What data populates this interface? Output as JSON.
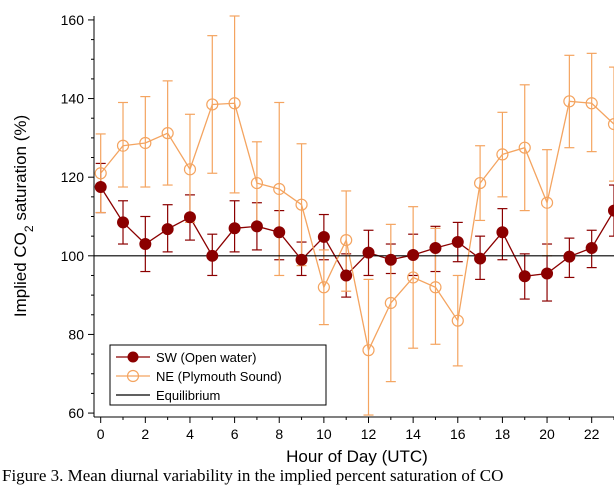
{
  "chart_data": {
    "type": "line",
    "xlabel": "Hour of Day (UTC)",
    "ylabel_parts": [
      "Implied CO",
      "2",
      " saturation (%)"
    ],
    "xlim": [
      -0.3,
      23
    ],
    "ylim": [
      59,
      161
    ],
    "xticks": [
      0,
      2,
      4,
      6,
      8,
      10,
      12,
      14,
      16,
      18,
      20,
      22
    ],
    "yticks": [
      60,
      80,
      100,
      120,
      140,
      160
    ],
    "grid": false,
    "legend_position": "bottom-left",
    "x": [
      0,
      1,
      2,
      3,
      4,
      5,
      6,
      7,
      8,
      9,
      10,
      11,
      12,
      13,
      14,
      15,
      16,
      17,
      18,
      19,
      20,
      21,
      22,
      23
    ],
    "series": [
      {
        "name": "SW (Open water)",
        "color": "#8b0000",
        "marker": "filled-circle",
        "values": [
          117.5,
          108.5,
          103.0,
          106.8,
          109.8,
          100.0,
          107.0,
          107.5,
          106.0,
          99.0,
          104.8,
          95.0,
          100.8,
          99.0,
          100.2,
          102.0,
          103.5,
          99.3,
          106.0,
          94.8,
          95.5,
          99.8,
          102.0,
          111.5
        ],
        "err_low": [
          111.0,
          103.0,
          96.0,
          101.0,
          104.0,
          95.0,
          101.0,
          101.5,
          99.0,
          95.0,
          99.0,
          89.5,
          95.0,
          95.5,
          95.0,
          96.0,
          98.5,
          94.0,
          99.0,
          89.0,
          88.5,
          94.5,
          97.0,
          105.0
        ],
        "err_high": [
          123.5,
          114.0,
          110.0,
          113.0,
          115.5,
          105.5,
          114.0,
          113.5,
          111.5,
          103.5,
          110.5,
          100.5,
          106.5,
          103.0,
          105.5,
          107.5,
          108.5,
          105.0,
          112.0,
          100.5,
          103.0,
          104.5,
          106.5,
          118.0
        ]
      },
      {
        "name": "NE (Plymouth Sound)",
        "color": "#f4a460",
        "marker": "open-circle",
        "values": [
          121.0,
          128.0,
          128.7,
          131.2,
          122.0,
          138.5,
          138.8,
          118.5,
          117.0,
          113.0,
          92.0,
          104.0,
          76.0,
          88.0,
          94.5,
          92.0,
          83.5,
          118.5,
          125.8,
          127.5,
          113.5,
          139.3,
          138.8,
          133.5
        ],
        "err_low": [
          111.0,
          117.5,
          117.5,
          118.0,
          108.5,
          121.0,
          116.0,
          108.0,
          95.0,
          97.5,
          82.5,
          91.0,
          59.5,
          68.0,
          76.5,
          77.5,
          72.0,
          109.0,
          115.0,
          111.5,
          100.0,
          127.5,
          126.5,
          119.0
        ],
        "err_high": [
          131.0,
          139.0,
          140.5,
          144.5,
          136.0,
          156.0,
          161.0,
          129.0,
          139.0,
          128.5,
          101.5,
          116.5,
          94.0,
          108.0,
          112.5,
          107.0,
          95.0,
          128.0,
          136.5,
          143.5,
          127.0,
          151.0,
          151.5,
          148.0
        ]
      },
      {
        "name": "Equilibrium",
        "color": "#000000",
        "marker": "none",
        "constant": 100
      }
    ]
  },
  "caption": "Figure 3. Mean diurnal variability in the implied percent saturation of CO"
}
